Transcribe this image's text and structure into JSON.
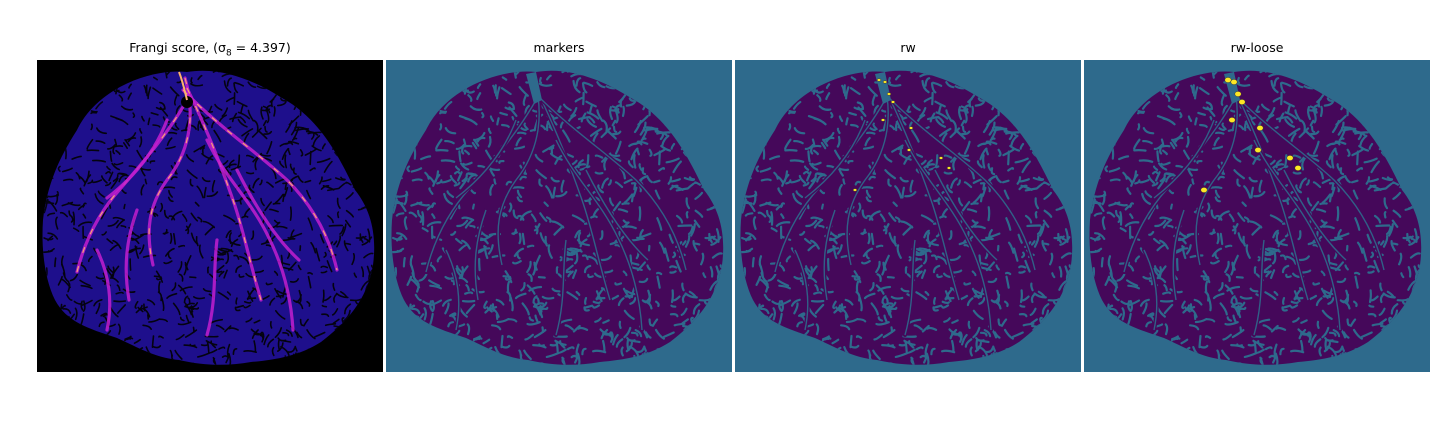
{
  "panels": [
    {
      "id": "frangi",
      "title": "Frangi score, (σ",
      "title_sub": "8",
      "title_tail": " = 4.397)",
      "background": "#000000",
      "tissue": "#1e0f8c",
      "pattern": "#04030f",
      "vessel": "#c21fcf",
      "highlight": "#ffb36b",
      "style": "frangi"
    },
    {
      "id": "markers",
      "title": "markers",
      "title_sub": "",
      "title_tail": "",
      "background": "#2e6a8c",
      "tissue": "#45085a",
      "pattern": "#2e6a8c",
      "style": "labels"
    },
    {
      "id": "rw",
      "title": "rw",
      "title_sub": "",
      "title_tail": "",
      "background": "#2e6a8c",
      "tissue": "#45085a",
      "pattern": "#2e6a8c",
      "accent": "#fde725",
      "style": "labels-spots-small"
    },
    {
      "id": "rw-loose",
      "title": "rw-loose",
      "title_sub": "",
      "title_tail": "",
      "background": "#2e6a8c",
      "tissue": "#45085a",
      "pattern": "#2e6a8c",
      "accent": "#fde725",
      "style": "labels-spots-large"
    }
  ]
}
